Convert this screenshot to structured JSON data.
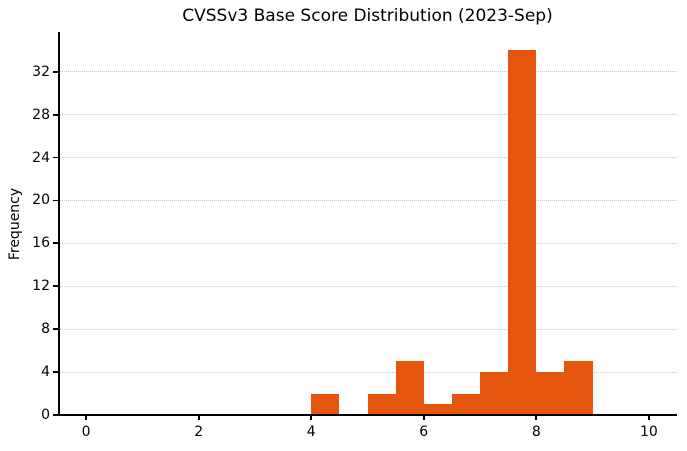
{
  "chart_data": {
    "type": "bar",
    "variant": "histogram",
    "title": "CVSSv3 Base Score Distribution (2023-Sep)",
    "xlabel": "",
    "ylabel": "Frequency",
    "bin_edges": [
      4.0,
      4.5,
      5.0,
      5.5,
      6.0,
      6.5,
      7.0,
      7.5,
      8.0,
      8.5,
      9.0
    ],
    "counts": [
      2,
      0,
      2,
      5,
      1,
      2,
      4,
      34,
      4,
      5
    ],
    "total_count": 59,
    "xlim": [
      -0.5,
      10.5
    ],
    "ylim": [
      0,
      35.7
    ],
    "x_ticks": [
      0,
      2,
      4,
      6,
      8,
      10
    ],
    "y_ticks": [
      0,
      4,
      8,
      12,
      16,
      20,
      24,
      28,
      32
    ],
    "grid": "horizontal-dotted",
    "legend": null,
    "colors": {
      "bar": "#e6550d",
      "grid": "#c8c8c8",
      "axis": "#000000",
      "text": "#000000",
      "background": "#ffffff"
    }
  }
}
